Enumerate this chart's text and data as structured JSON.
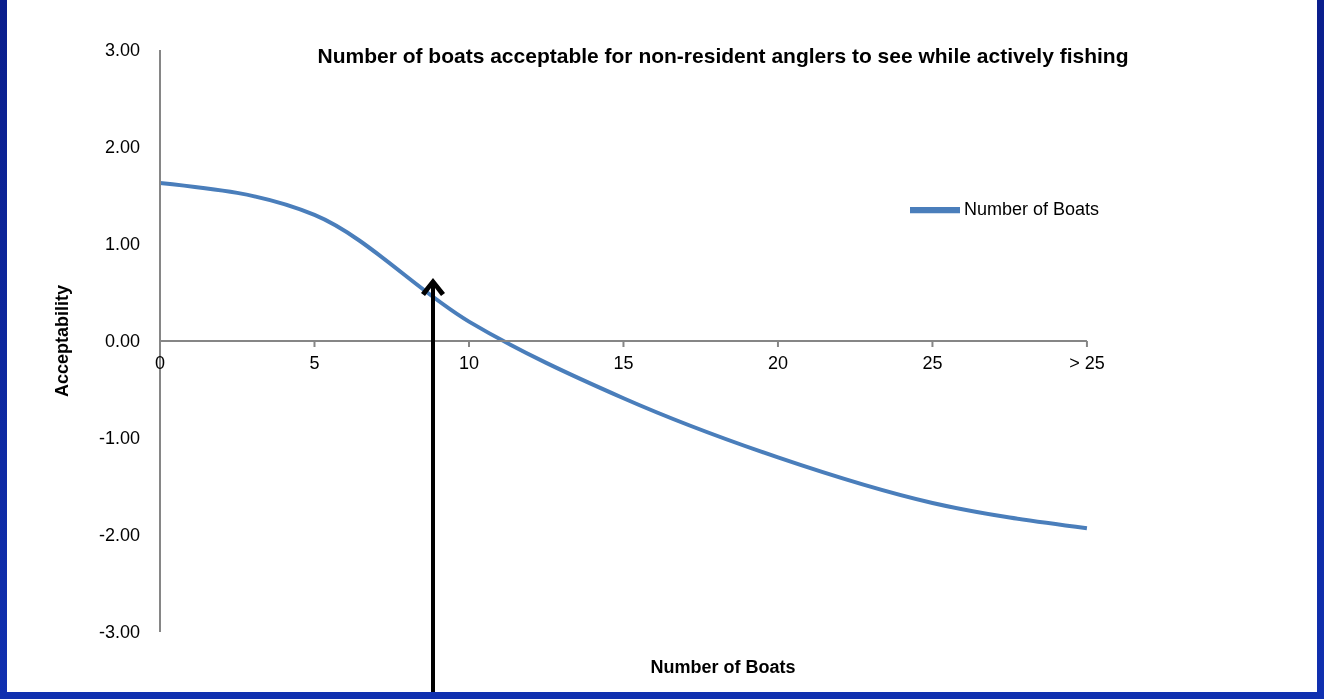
{
  "chart_data": {
    "type": "line",
    "title": "Number of boats acceptable for non-resident anglers to see while actively fishing",
    "xlabel": "Number of Boats",
    "ylabel": "Acceptability",
    "categories": [
      "0",
      "5",
      "10",
      "15",
      "20",
      "25",
      "> 25"
    ],
    "series": [
      {
        "name": "Number of Boats",
        "color": "#4a7ebb",
        "values": [
          1.63,
          1.3,
          0.2,
          -0.59,
          -1.2,
          -1.67,
          -1.93
        ]
      }
    ],
    "ylim": [
      -3,
      3
    ],
    "yticks": [
      {
        "value": -3,
        "label": "-3.00"
      },
      {
        "value": -2,
        "label": "-2.00"
      },
      {
        "value": -1,
        "label": "-1.00"
      },
      {
        "value": 0,
        "label": "0.00"
      },
      {
        "value": 1,
        "label": "1.00"
      },
      {
        "value": 2,
        "label": "2.00"
      },
      {
        "value": 3,
        "label": "3.00"
      }
    ],
    "grid": false,
    "legend": "top right",
    "marker": "none",
    "line_style": "solid"
  }
}
